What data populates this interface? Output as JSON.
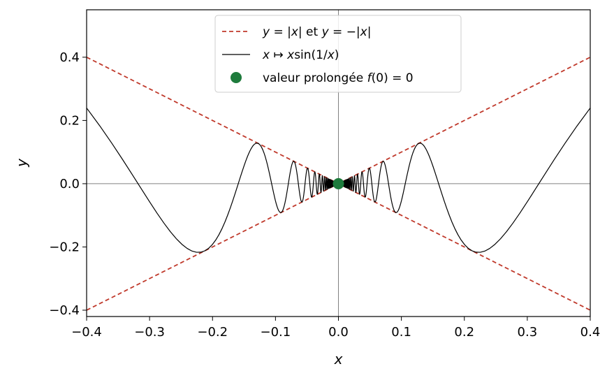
{
  "chart_data": {
    "type": "line",
    "xlabel": "x",
    "ylabel": "y",
    "xlim": [
      -0.4,
      0.4
    ],
    "ylim": [
      -0.42,
      0.55
    ],
    "x_ticks": [
      -0.4,
      -0.3,
      -0.2,
      -0.1,
      0.0,
      0.1,
      0.2,
      0.3,
      0.4
    ],
    "x_tick_labels": [
      "−0.4",
      "−0.3",
      "−0.2",
      "−0.1",
      "0.0",
      "0.1",
      "0.2",
      "0.3",
      "0.4"
    ],
    "y_ticks": [
      -0.4,
      -0.2,
      0.0,
      0.2,
      0.4
    ],
    "y_tick_labels": [
      "−0.4",
      "−0.2",
      "0.0",
      "0.2",
      "0.4"
    ],
    "grid": false,
    "reference_lines": {
      "x": 0,
      "y": 0,
      "color": "#808080"
    },
    "legend_position": "top-center",
    "series": [
      {
        "name": "y = |x| et y = −|x|",
        "kind": "dashed",
        "color": "#c0392b",
        "lines": [
          {
            "x": [
              -0.4,
              0.4
            ],
            "y": [
              0.4,
              -0.4
            ]
          },
          {
            "x": [
              -0.4,
              0.4
            ],
            "y": [
              -0.4,
              0.4
            ]
          }
        ]
      },
      {
        "name": "x ↦ x sin(1/x)",
        "kind": "function",
        "formula": "x*sin(1/x)",
        "domain": [
          -0.4,
          0.4
        ],
        "color": "#000000"
      },
      {
        "name": "valeur prolongée f(0) = 0",
        "kind": "point",
        "x": [
          0
        ],
        "y": [
          0
        ],
        "color": "#1e7b3c"
      }
    ],
    "legend": {
      "items": [
        {
          "prefix": "",
          "var1": "y",
          "mid": " = |",
          "var2": "x",
          "tail": "| et ",
          "var3": "y",
          "tail2": " = −|",
          "var4": "x",
          "end": "|"
        },
        {
          "var1": "x",
          "arrow": " ↦ ",
          "var2": "x",
          "fn": "sin(1/",
          "var3": "x",
          "end": ")"
        },
        {
          "pre": "valeur prolongée ",
          "var1": "f",
          "mid": "(0) = 0"
        }
      ]
    }
  }
}
